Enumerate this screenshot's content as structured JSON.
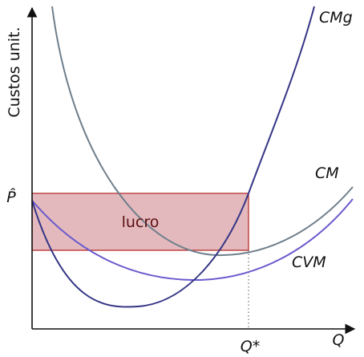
{
  "axis": {
    "y_label": "Custos unit.",
    "x_label": "Q",
    "y_mark": "P̂",
    "x_mark": "Q*"
  },
  "curves": {
    "marginal": "CMg",
    "average": "CM",
    "average_variable": "CVM"
  },
  "area_label": "lucro"
}
